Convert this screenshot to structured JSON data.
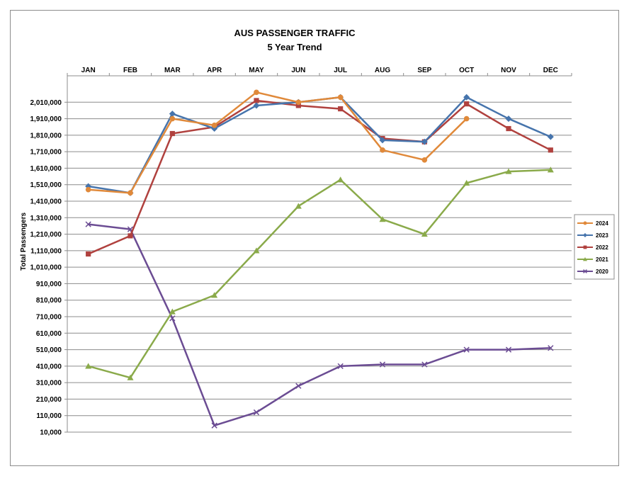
{
  "chart_data": {
    "type": "line",
    "title": "AUS PASSENGER TRAFFIC",
    "subtitle": "5 Year Trend",
    "ylabel": "Total Passengers",
    "xlabel": "",
    "categories": [
      "JAN",
      "FEB",
      "MAR",
      "APR",
      "MAY",
      "JUN",
      "JUL",
      "AUG",
      "SEP",
      "OCT",
      "NOV",
      "DEC"
    ],
    "ylim": [
      10000,
      2110000
    ],
    "yticks": [
      10000,
      110000,
      210000,
      310000,
      410000,
      510000,
      610000,
      710000,
      810000,
      910000,
      1010000,
      1110000,
      1210000,
      1310000,
      1410000,
      1510000,
      1610000,
      1710000,
      1810000,
      1910000,
      2010000
    ],
    "ytick_labels": [
      "10,000",
      "110,000",
      "210,000",
      "310,000",
      "410,000",
      "510,000",
      "610,000",
      "710,000",
      "810,000",
      "910,000",
      "1,010,000",
      "1,110,000",
      "1,210,000",
      "1,310,000",
      "1,410,000",
      "1,510,000",
      "1,610,000",
      "1,710,000",
      "1,810,000",
      "1,910,000",
      "2,010,000"
    ],
    "grid": "horizontal",
    "x_axis_position": "top",
    "legend_position": "right",
    "series": [
      {
        "name": "2024",
        "color": "#e0893a",
        "marker": "circle",
        "values": [
          1480000,
          1460000,
          1910000,
          1870000,
          2070000,
          2010000,
          2040000,
          1720000,
          1660000,
          1910000,
          null,
          null
        ]
      },
      {
        "name": "2023",
        "color": "#4674ac",
        "marker": "diamond",
        "values": [
          1500000,
          1460000,
          1940000,
          1850000,
          1990000,
          2010000,
          2040000,
          1780000,
          1770000,
          2040000,
          1910000,
          1800000
        ]
      },
      {
        "name": "2022",
        "color": "#b0413e",
        "marker": "square",
        "values": [
          1090000,
          1200000,
          1820000,
          1860000,
          2020000,
          1990000,
          1970000,
          1790000,
          1770000,
          2000000,
          1850000,
          1720000
        ]
      },
      {
        "name": "2021",
        "color": "#8aaa4a",
        "marker": "triangle",
        "values": [
          410000,
          340000,
          740000,
          840000,
          1110000,
          1380000,
          1540000,
          1300000,
          1210000,
          1520000,
          1590000,
          1600000
        ]
      },
      {
        "name": "2020",
        "color": "#6b4c93",
        "marker": "x",
        "values": [
          1270000,
          1240000,
          700000,
          50000,
          130000,
          290000,
          410000,
          420000,
          420000,
          510000,
          510000,
          520000
        ]
      }
    ]
  }
}
